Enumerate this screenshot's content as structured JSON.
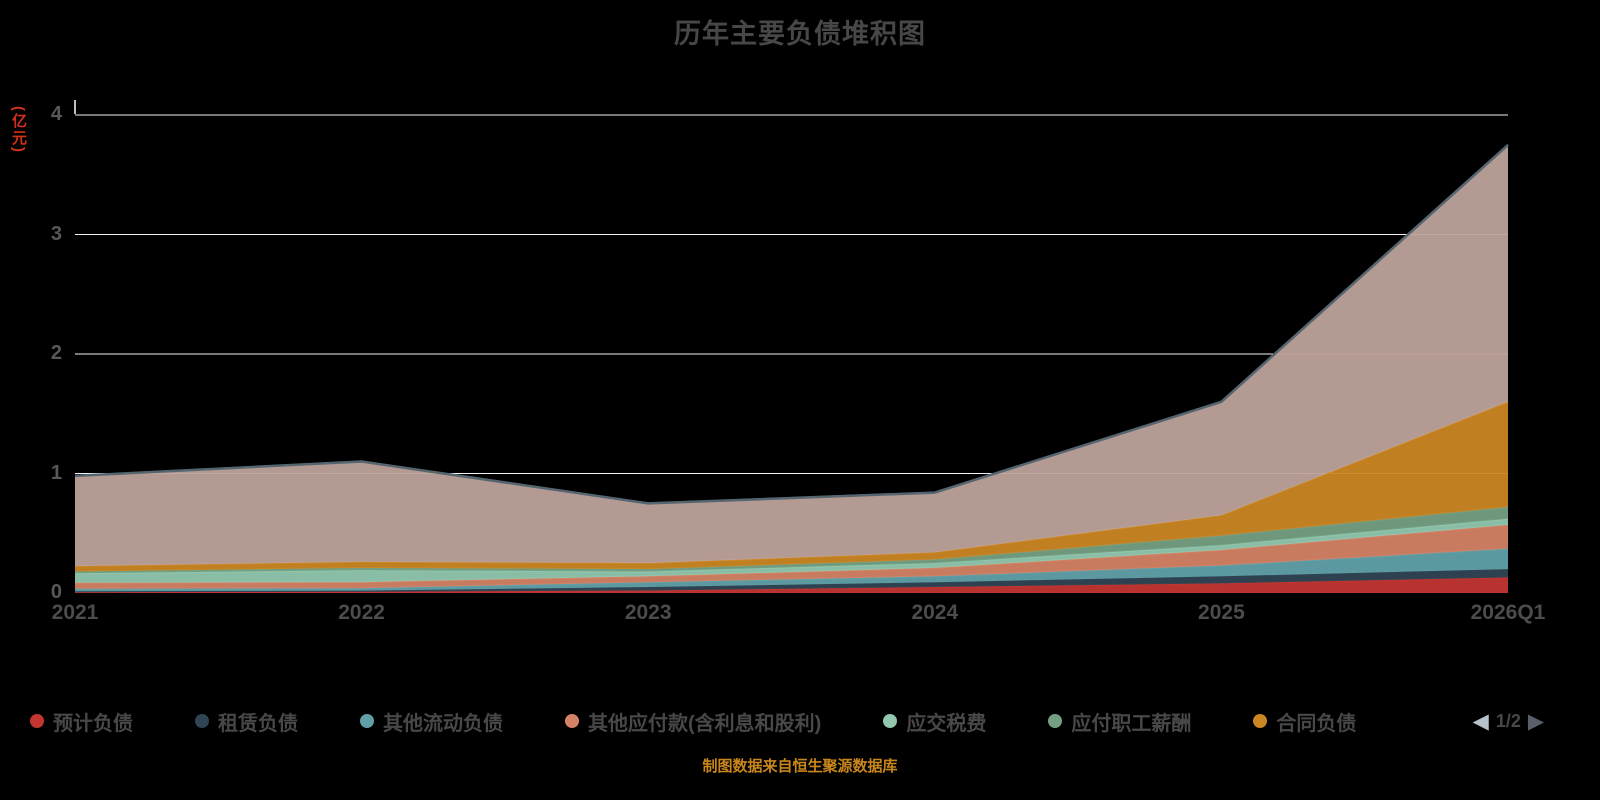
{
  "chart_data": {
    "type": "area",
    "stacked": true,
    "title": "历年主要负债堆积图",
    "ylabel": "(亿元)",
    "x": [
      "2021",
      "2022",
      "2023",
      "2024",
      "2025",
      "2026Q1"
    ],
    "ylim": [
      0,
      4
    ],
    "yticks": [
      0,
      1,
      2,
      3,
      4
    ],
    "grid": true,
    "legend_position": "bottom",
    "total_outline_color": "#546570",
    "grid_line_color": "#ffffff",
    "series": [
      {
        "name": "预计负债",
        "color": "#c23531",
        "values": [
          0.01,
          0.01,
          0.02,
          0.05,
          0.08,
          0.13
        ]
      },
      {
        "name": "租赁负债",
        "color": "#2f4554",
        "values": [
          0.005,
          0.01,
          0.03,
          0.04,
          0.06,
          0.07
        ]
      },
      {
        "name": "其他流动负债",
        "color": "#61a0a8",
        "values": [
          0.02,
          0.02,
          0.04,
          0.05,
          0.09,
          0.17
        ]
      },
      {
        "name": "其他应付款(含利息和股利)",
        "color": "#d48265",
        "values": [
          0.05,
          0.05,
          0.05,
          0.07,
          0.13,
          0.2
        ]
      },
      {
        "name": "应交税费",
        "color": "#91c7ae",
        "values": [
          0.08,
          0.1,
          0.04,
          0.04,
          0.04,
          0.05
        ]
      },
      {
        "name": "应付职工薪酬",
        "color": "#749f83",
        "values": [
          0.015,
          0.02,
          0.02,
          0.03,
          0.08,
          0.1
        ]
      },
      {
        "name": "合同负债",
        "color": "#ca8622",
        "values": [
          0.045,
          0.05,
          0.05,
          0.06,
          0.17,
          0.88
        ]
      },
      {
        "name": "",
        "color": "#bda29a",
        "values": [
          0.755,
          0.84,
          0.5,
          0.5,
          0.95,
          2.15
        ]
      }
    ]
  },
  "legend": {
    "page_text": "1/2",
    "prev_icon": "◀",
    "next_icon": "▶",
    "items": [
      {
        "label": "预计负债",
        "color": "#c23531"
      },
      {
        "label": "租赁负债",
        "color": "#2f4554"
      },
      {
        "label": "其他流动负债",
        "color": "#61a0a8"
      },
      {
        "label": "其他应付款(含利息和股利)",
        "color": "#d48265"
      },
      {
        "label": "应交税费",
        "color": "#91c7ae"
      },
      {
        "label": "应付职工薪酬",
        "color": "#749f83"
      },
      {
        "label": "合同负债",
        "color": "#ca8622"
      }
    ]
  },
  "footer": "制图数据来自恒生聚源数据库"
}
